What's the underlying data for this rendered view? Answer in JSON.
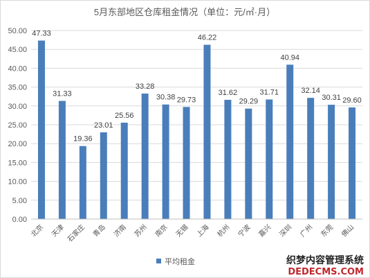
{
  "chart_data": {
    "type": "bar",
    "title": "5月东部地区仓库租金情况（单位：元/㎡·月）",
    "categories": [
      "北京",
      "天津",
      "石家庄",
      "青岛",
      "济南",
      "苏州",
      "南京",
      "无锡",
      "上海",
      "杭州",
      "宁波",
      "嘉兴",
      "深圳",
      "广州",
      "东莞",
      "佛山"
    ],
    "series": [
      {
        "name": "平均租金",
        "color": "#4a7ebb",
        "values": [
          47.33,
          31.33,
          19.36,
          23.01,
          25.56,
          33.28,
          30.38,
          29.73,
          46.22,
          31.62,
          29.29,
          31.71,
          40.94,
          32.14,
          30.31,
          29.6
        ]
      }
    ],
    "ylim": [
      0,
      50
    ],
    "yticks": [
      "0.00",
      "5.00",
      "10.00",
      "15.00",
      "20.00",
      "25.00",
      "30.00",
      "35.00",
      "40.00",
      "45.00",
      "50.00"
    ],
    "grid": true,
    "legend_position": "bottom-center"
  },
  "watermark": {
    "line1": "织梦内容管理系统",
    "line2": "DEDECMS.COM"
  }
}
